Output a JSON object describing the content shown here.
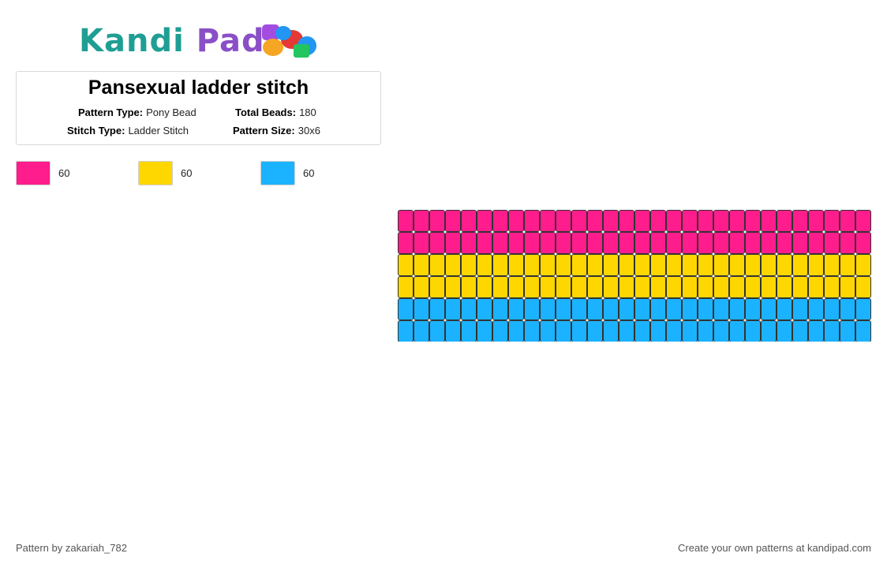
{
  "logo": {
    "part1": "Kandi",
    "part2": "Pad",
    "bead_colors": [
      "#a24de0",
      "#f5a623",
      "#e53935",
      "#2196f3",
      "#22c55e"
    ]
  },
  "pattern": {
    "title": "Pansexual ladder stitch",
    "pattern_type_label": "Pattern Type:",
    "pattern_type": "Pony Bead",
    "total_beads_label": "Total Beads:",
    "total_beads": "180",
    "stitch_type_label": "Stitch Type:",
    "stitch_type": "Ladder Stitch",
    "pattern_size_label": "Pattern Size:",
    "pattern_size": "30x6"
  },
  "swatches": [
    {
      "color": "#ff1c8d",
      "count": "60"
    },
    {
      "color": "#ffd700",
      "count": "60"
    },
    {
      "color": "#1bb3ff",
      "count": "60"
    }
  ],
  "grid": {
    "columns": 30,
    "rows": 6,
    "row_colors": [
      "#ff1c8d",
      "#ff1c8d",
      "#ffd700",
      "#ffd700",
      "#1bb3ff",
      "#1bb3ff"
    ]
  },
  "footer": {
    "credit": "Pattern by zakariah_782",
    "promo": "Create your own patterns at kandipad.com"
  }
}
